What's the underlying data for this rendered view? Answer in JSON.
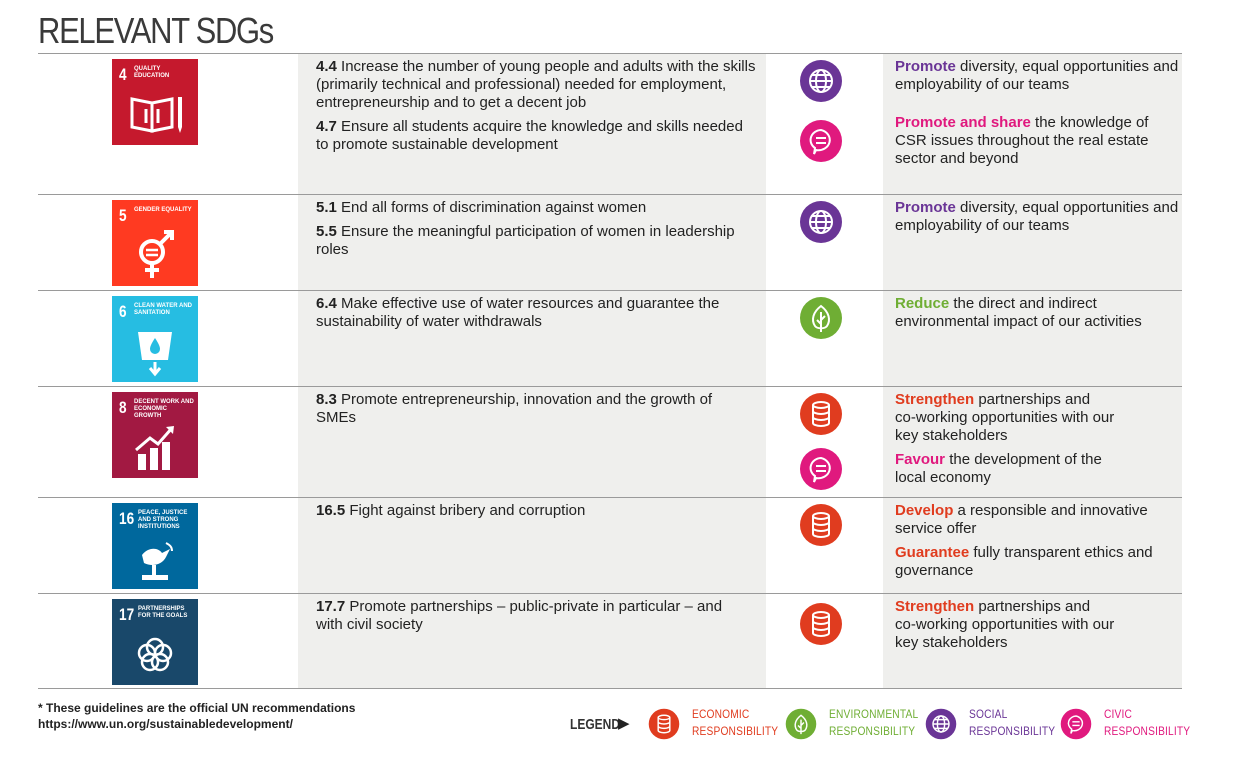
{
  "page_title": "RELEVANT SDGs",
  "colors": {
    "economic": "#e03c1f",
    "environmental": "#6fae34",
    "social": "#6a3596",
    "civic": "#e0197e",
    "row_bg": "#efefed"
  },
  "rows": [
    {
      "sdg": {
        "number": "4",
        "label": "QUALITY EDUCATION",
        "color": "#c5192d",
        "icon": "book-pencil-icon"
      },
      "targets": [
        {
          "code": "4.4",
          "text": "Increase the number of young people and adults with the skills (primarily technical and professional) needed for employment, entrepreneurship and to get a decent job"
        },
        {
          "code": "4.7",
          "text": "Ensure all students acquire the knowledge and skills needed to promote sustainable development"
        }
      ],
      "commitments": [
        {
          "type": "social",
          "icon": "globe-icon",
          "keyword": "Promote",
          "text": "diversity, equal opportunities and employability of our teams"
        },
        {
          "type": "civic",
          "icon": "speech-bubble-icon",
          "keyword": "Promote and share",
          "text": "the knowledge of CSR issues throughout the real estate sector and beyond"
        }
      ]
    },
    {
      "sdg": {
        "number": "5",
        "label": "GENDER EQUALITY",
        "color": "#ff3a21",
        "icon": "gender-symbol-icon"
      },
      "targets": [
        {
          "code": "5.1",
          "text": "End all forms of discrimination against women"
        },
        {
          "code": "5.5",
          "text": "Ensure the meaningful participation of women in leadership roles"
        }
      ],
      "commitments": [
        {
          "type": "social",
          "icon": "globe-icon",
          "keyword": "Promote",
          "text": "diversity, equal opportunities and employability of our teams"
        }
      ]
    },
    {
      "sdg": {
        "number": "6",
        "label": "CLEAN WATER AND SANITATION",
        "color": "#26bde2",
        "icon": "water-glass-icon"
      },
      "targets": [
        {
          "code": "6.4",
          "text": "Make effective use of water resources and guarantee the sustainability of water withdrawals"
        }
      ],
      "commitments": [
        {
          "type": "environmental",
          "icon": "leaf-icon",
          "keyword": "Reduce",
          "text": "the direct and indirect environmental impact of our activities"
        }
      ]
    },
    {
      "sdg": {
        "number": "8",
        "label": "DECENT WORK AND ECONOMIC GROWTH",
        "color": "#a21942",
        "icon": "growth-chart-icon"
      },
      "targets": [
        {
          "code": "8.3",
          "text": "Promote entrepreneurship, innovation and the growth of SMEs"
        }
      ],
      "commitments": [
        {
          "type": "economic",
          "icon": "coin-stack-icon",
          "keyword": "Strengthen",
          "text": "partnerships and co-working opportunities with our key stakeholders"
        },
        {
          "type": "civic",
          "icon": "speech-bubble-icon",
          "keyword": "Favour",
          "text": "the development of the local economy"
        }
      ]
    },
    {
      "sdg": {
        "number": "16",
        "label": "PEACE, JUSTICE AND STRONG INSTITUTIONS",
        "color": "#00689d",
        "icon": "dove-gavel-icon"
      },
      "targets": [
        {
          "code": "16.5",
          "text": "Fight against bribery and corruption"
        }
      ],
      "commitments": [
        {
          "type": "economic",
          "icon": "coin-stack-icon",
          "keyword": "Develop",
          "text": "a responsible and innovative service offer"
        },
        {
          "type": "economic",
          "icon": "",
          "keyword": "Guarantee",
          "text": "fully transparent ethics and governance"
        }
      ]
    },
    {
      "sdg": {
        "number": "17",
        "label": "PARTNERSHIPS FOR THE GOALS",
        "color": "#19486a",
        "icon": "linked-rings-icon"
      },
      "targets": [
        {
          "code": "17.7",
          "text": "Promote partnerships – public-private in particular – and with civil society"
        }
      ],
      "commitments": [
        {
          "type": "economic",
          "icon": "coin-stack-icon",
          "keyword": "Strengthen",
          "text": "partnerships and co-working opportunities with our key stakeholders"
        }
      ]
    }
  ],
  "footnote": {
    "line1": "* These guidelines are the official UN recommendations",
    "line2": "https://www.un.org/sustainabledevelopment/"
  },
  "legend": {
    "label": "LEGEND",
    "arrow": "▶",
    "items": [
      {
        "type": "economic",
        "icon": "coin-stack-icon",
        "line1": "ECONOMIC",
        "line2": "RESPONSIBILITY"
      },
      {
        "type": "environmental",
        "icon": "leaf-icon",
        "line1": "ENVIRONMENTAL",
        "line2": "RESPONSIBILITY"
      },
      {
        "type": "social",
        "icon": "globe-icon",
        "line1": "SOCIAL",
        "line2": "RESPONSIBILITY"
      },
      {
        "type": "civic",
        "icon": "speech-bubble-icon",
        "line1": "CIVIC",
        "line2": "RESPONSIBILITY"
      }
    ]
  }
}
